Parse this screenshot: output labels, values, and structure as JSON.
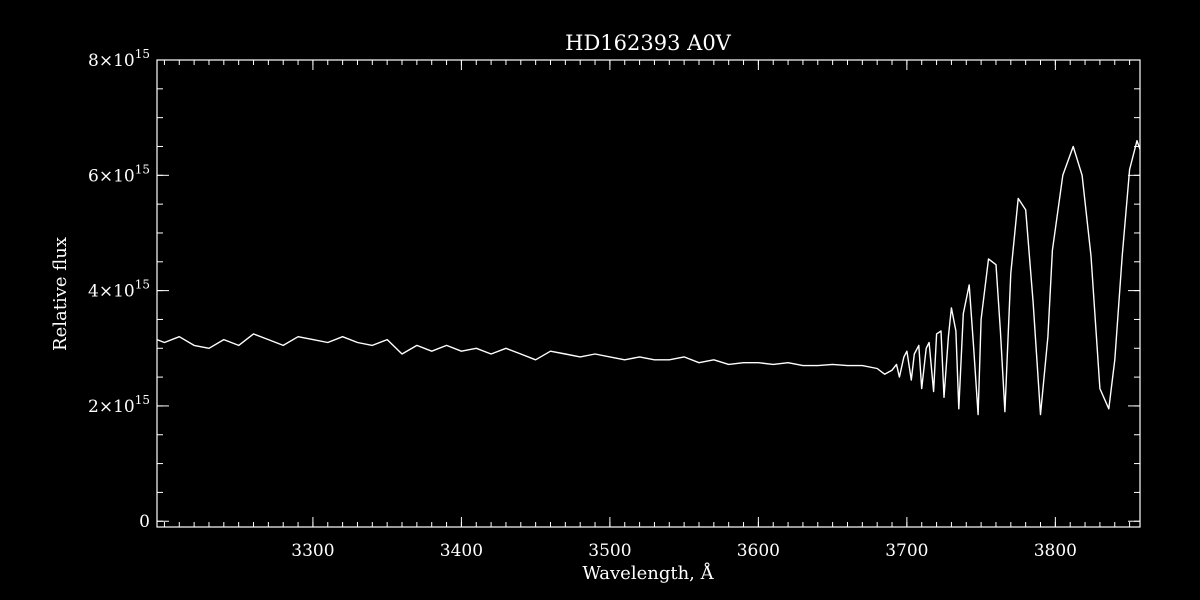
{
  "chart_data": {
    "type": "line",
    "title": "HD162393  A0V",
    "xlabel": "Wavelength, Å",
    "ylabel": "Relative flux",
    "xlim": [
      3195,
      3857
    ],
    "ylim": [
      -100000000000000.0,
      8000000000000000.0
    ],
    "x_ticks": [
      3300,
      3400,
      3500,
      3600,
      3700,
      3800
    ],
    "x_tick_labels": [
      "3300",
      "3400",
      "3500",
      "3600",
      "3700",
      "3800"
    ],
    "x_minor_step": 10,
    "y_ticks": [
      0,
      2000000000000000.0,
      4000000000000000.0,
      6000000000000000.0,
      8000000000000000.0
    ],
    "y_tick_labels": [
      {
        "base": "0",
        "exp": ""
      },
      {
        "base": "2×10",
        "exp": "15"
      },
      {
        "base": "4×10",
        "exp": "15"
      },
      {
        "base": "6×10",
        "exp": "15"
      },
      {
        "base": "8×10",
        "exp": "15"
      }
    ],
    "y_minor_step": 500000000000000.0,
    "grid": false,
    "colors": {
      "background": "#000000",
      "foreground": "#ffffff"
    },
    "series": [
      {
        "x": [
          3195,
          3200,
          3210,
          3220,
          3230,
          3240,
          3250,
          3260,
          3270,
          3280,
          3290,
          3300,
          3310,
          3320,
          3330,
          3340,
          3350,
          3360,
          3370,
          3380,
          3390,
          3400,
          3410,
          3420,
          3430,
          3440,
          3450,
          3460,
          3470,
          3480,
          3490,
          3500,
          3510,
          3520,
          3530,
          3540,
          3550,
          3560,
          3570,
          3580,
          3590,
          3600,
          3610,
          3620,
          3630,
          3640,
          3650,
          3660,
          3670,
          3680,
          3685,
          3690,
          3693,
          3695,
          3698,
          3700,
          3703,
          3705,
          3708,
          3710,
          3713,
          3715,
          3718,
          3720,
          3723,
          3725,
          3728,
          3730,
          3733,
          3735,
          3738,
          3742,
          3745,
          3748,
          3750,
          3755,
          3760,
          3763,
          3766,
          3770,
          3775,
          3780,
          3785,
          3790,
          3795,
          3798,
          3805,
          3812,
          3818,
          3824,
          3830,
          3836,
          3840,
          3845,
          3850,
          3855,
          3857
        ],
        "y": [
          3150000000000000.0,
          3100000000000000.0,
          3200000000000000.0,
          3050000000000000.0,
          3000000000000000.0,
          3150000000000000.0,
          3050000000000000.0,
          3250000000000000.0,
          3150000000000000.0,
          3050000000000000.0,
          3200000000000000.0,
          3150000000000000.0,
          3100000000000000.0,
          3200000000000000.0,
          3100000000000000.0,
          3050000000000000.0,
          3150000000000000.0,
          2900000000000000.0,
          3050000000000000.0,
          2950000000000000.0,
          3050000000000000.0,
          2950000000000000.0,
          3000000000000000.0,
          2900000000000000.0,
          3000000000000000.0,
          2900000000000000.0,
          2800000000000000.0,
          2950000000000000.0,
          2900000000000000.0,
          2850000000000000.0,
          2900000000000000.0,
          2850000000000000.0,
          2800000000000000.0,
          2850000000000000.0,
          2800000000000000.0,
          2800000000000000.0,
          2850000000000000.0,
          2750000000000000.0,
          2800000000000000.0,
          2720000000000000.0,
          2750000000000000.0,
          2750000000000000.0,
          2720000000000000.0,
          2750000000000000.0,
          2700000000000000.0,
          2700000000000000.0,
          2720000000000000.0,
          2700000000000000.0,
          2700000000000000.0,
          2650000000000000.0,
          2550000000000000.0,
          2620000000000000.0,
          2720000000000000.0,
          2500000000000000.0,
          2850000000000000.0,
          2950000000000000.0,
          2450000000000000.0,
          2900000000000000.0,
          3050000000000000.0,
          2300000000000000.0,
          3000000000000000.0,
          3100000000000000.0,
          2250000000000000.0,
          3250000000000000.0,
          3300000000000000.0,
          2150000000000000.0,
          3200000000000000.0,
          3700000000000000.0,
          3300000000000000.0,
          1950000000000000.0,
          3600000000000000.0,
          4100000000000000.0,
          3000000000000000.0,
          1850000000000000.0,
          3500000000000000.0,
          4550000000000000.0,
          4450000000000000.0,
          3300000000000000.0,
          1900000000000000.0,
          4300000000000000.0,
          5600000000000000.0,
          5400000000000000.0,
          3800000000000000.0,
          1850000000000000.0,
          3200000000000000.0,
          4700000000000000.0,
          6000000000000000.0,
          6500000000000000.0,
          6000000000000000.0,
          4600000000000000.0,
          2300000000000000.0,
          1950000000000000.0,
          2800000000000000.0,
          4600000000000000.0,
          6100000000000000.0,
          6600000000000000.0,
          6450000000000000.0
        ]
      }
    ]
  }
}
